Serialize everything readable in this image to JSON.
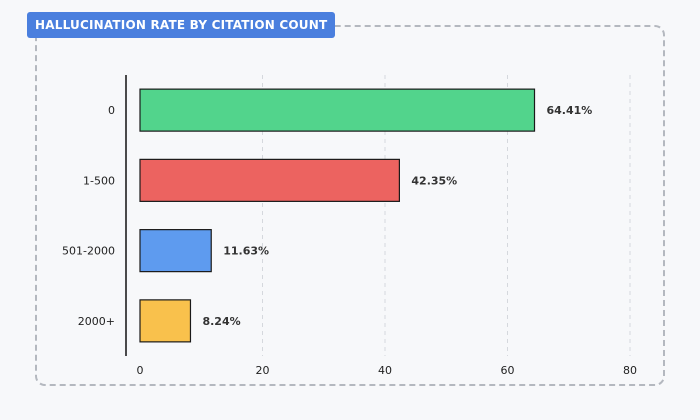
{
  "chart_data": {
    "type": "bar",
    "orientation": "horizontal",
    "title": "HALLUCINATION RATE BY CITATION COUNT",
    "categories": [
      "0",
      "1-500",
      "501-2000",
      "2000+"
    ],
    "values": [
      64.41,
      42.35,
      11.63,
      8.24
    ],
    "value_labels": [
      "64.41%",
      "42.35%",
      "11.63%",
      "8.24%"
    ],
    "colors": [
      "#52d48c",
      "#ec6360",
      "#5e9bef",
      "#f9c14c"
    ],
    "xlim": [
      0,
      80
    ],
    "xticks": [
      0,
      20,
      40,
      60,
      80
    ],
    "xtick_labels": [
      "0",
      "20",
      "40",
      "60",
      "80"
    ],
    "xlabel": "",
    "ylabel": "",
    "grid": "vertical dashed",
    "legend": "none"
  }
}
